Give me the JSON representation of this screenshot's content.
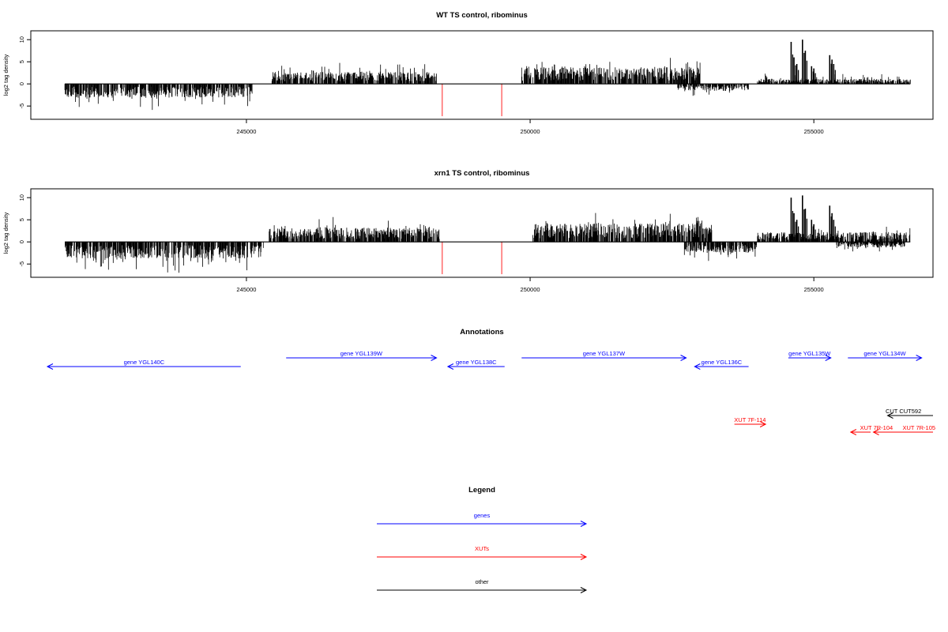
{
  "chart_data": [
    {
      "type": "bar",
      "title": "WT TS control, ribominus",
      "xlabel": "",
      "ylabel": "log2 tag density",
      "xlim": [
        241200,
        257100
      ],
      "ylim": [
        -8,
        12
      ],
      "x_ticks": [
        245000,
        250000,
        255000
      ],
      "x_tick_labels": [
        "245000",
        "250000",
        "255000"
      ],
      "y_ticks": [
        -5,
        0,
        5,
        10
      ],
      "y_tick_labels": [
        "-5",
        "0",
        "5",
        "10"
      ],
      "baseline": {
        "x_start": 241800,
        "x_end": 256700
      },
      "segments": [
        {
          "strand": "minus",
          "x_start": 241800,
          "x_end": 245100,
          "level": 2.5,
          "spread": 1.7
        },
        {
          "strand": "plus",
          "x_start": 245450,
          "x_end": 248350,
          "level": 2.2,
          "spread": 1.3
        },
        {
          "strand": "plus",
          "x_start": 249850,
          "x_end": 253000,
          "level": 3.0,
          "spread": 1.2
        },
        {
          "strand": "minus",
          "x_start": 252600,
          "x_end": 253850,
          "level": 1.3,
          "spread": 1.0
        },
        {
          "strand": "plus",
          "x_start": 254000,
          "x_end": 256700,
          "level": 0.9,
          "spread": 0.8
        }
      ],
      "peaks": [
        {
          "x": 254600,
          "value": 9.5
        },
        {
          "x": 254650,
          "value": 6.0
        },
        {
          "x": 254700,
          "value": 4.5
        },
        {
          "x": 254800,
          "value": 10.0
        },
        {
          "x": 254850,
          "value": 7.5
        },
        {
          "x": 254960,
          "value": 4.0
        },
        {
          "x": 255000,
          "value": 3.5
        },
        {
          "x": 255280,
          "value": 6.5
        },
        {
          "x": 255320,
          "value": 5.5
        },
        {
          "x": 255350,
          "value": 4.5
        }
      ],
      "red_markers": [
        {
          "x": 248450,
          "value": -7.3
        },
        {
          "x": 249500,
          "value": -7.3
        }
      ]
    },
    {
      "type": "bar",
      "title": "xrn1 TS control, ribominus",
      "xlabel": "",
      "ylabel": "log2 tag density",
      "xlim": [
        241200,
        257100
      ],
      "ylim": [
        -8,
        12
      ],
      "x_ticks": [
        245000,
        250000,
        255000
      ],
      "x_tick_labels": [
        "245000",
        "250000",
        "255000"
      ],
      "y_ticks": [
        -5,
        0,
        5,
        10
      ],
      "y_tick_labels": [
        "-5",
        "0",
        "5",
        "10"
      ],
      "baseline": {
        "x_start": 241800,
        "x_end": 256700
      },
      "segments": [
        {
          "strand": "minus",
          "x_start": 241800,
          "x_end": 245300,
          "level": 3.0,
          "spread": 2.0
        },
        {
          "strand": "plus",
          "x_start": 245400,
          "x_end": 248400,
          "level": 2.6,
          "spread": 1.4
        },
        {
          "strand": "plus",
          "x_start": 250050,
          "x_end": 253200,
          "level": 3.3,
          "spread": 1.4
        },
        {
          "strand": "minus",
          "x_start": 252700,
          "x_end": 254000,
          "level": 2.0,
          "spread": 1.2
        },
        {
          "strand": "plus",
          "x_start": 254000,
          "x_end": 256700,
          "level": 1.8,
          "spread": 1.0
        },
        {
          "strand": "minus",
          "x_start": 255400,
          "x_end": 256600,
          "level": 1.0,
          "spread": 0.8
        }
      ],
      "peaks": [
        {
          "x": 254600,
          "value": 10.0
        },
        {
          "x": 254650,
          "value": 6.5
        },
        {
          "x": 254700,
          "value": 5.0
        },
        {
          "x": 254800,
          "value": 10.5
        },
        {
          "x": 254850,
          "value": 7.5
        },
        {
          "x": 254960,
          "value": 5.0
        },
        {
          "x": 255000,
          "value": 4.0
        },
        {
          "x": 255280,
          "value": 8.2
        },
        {
          "x": 255320,
          "value": 6.5
        },
        {
          "x": 255350,
          "value": 5.0
        }
      ],
      "red_markers": [
        {
          "x": 248450,
          "value": -7.3
        },
        {
          "x": 249500,
          "value": -7.3
        }
      ]
    }
  ],
  "annotations": {
    "title": "Annotations",
    "features": [
      {
        "label": "gene YGL140C",
        "kind": "gene",
        "strand": "-",
        "start": 241250,
        "end": 244900,
        "row": 1
      },
      {
        "label": "gene YGL139W",
        "kind": "gene",
        "strand": "+",
        "start": 245700,
        "end": 248350,
        "row": 0
      },
      {
        "label": "gene YGL138C",
        "kind": "gene",
        "strand": "-",
        "start": 248550,
        "end": 249550,
        "row": 1
      },
      {
        "label": "gene YGL137W",
        "kind": "gene",
        "strand": "+",
        "start": 249850,
        "end": 252750,
        "row": 0
      },
      {
        "label": "gene YGL136C",
        "kind": "gene",
        "strand": "-",
        "start": 252900,
        "end": 253850,
        "row": 1
      },
      {
        "label": "gene YGL135W",
        "kind": "gene",
        "strand": "+",
        "start": 254550,
        "end": 255300,
        "row": 0
      },
      {
        "label": "gene YGL134W",
        "kind": "gene",
        "strand": "+",
        "start": 255600,
        "end": 256900,
        "row": 0
      },
      {
        "label": "CUT CUT592",
        "kind": "other",
        "strand": "-",
        "start": 256300,
        "end": 257100,
        "row": 3
      },
      {
        "label": "XUT 7F-114",
        "kind": "xut",
        "strand": "+",
        "start": 253600,
        "end": 254150,
        "row": 4
      },
      {
        "label": "XUT 7R-104",
        "kind": "xut",
        "strand": "-",
        "start": 255650,
        "end": 256000,
        "row": 5
      },
      {
        "label": "XUT 7R-105",
        "kind": "xut",
        "strand": "-",
        "start": 256050,
        "end": 257100,
        "row": 5
      }
    ]
  },
  "legend": {
    "title": "Legend",
    "items": [
      {
        "label": "genes",
        "color": "#0000ff"
      },
      {
        "label": "XUTs",
        "color": "#ff0000"
      },
      {
        "label": "other",
        "color": "#000000"
      }
    ]
  },
  "colors": {
    "gene": "#0000ff",
    "xut": "#ff0000",
    "other": "#000000",
    "marker": "#ff6b6b",
    "bar": "#000000"
  }
}
